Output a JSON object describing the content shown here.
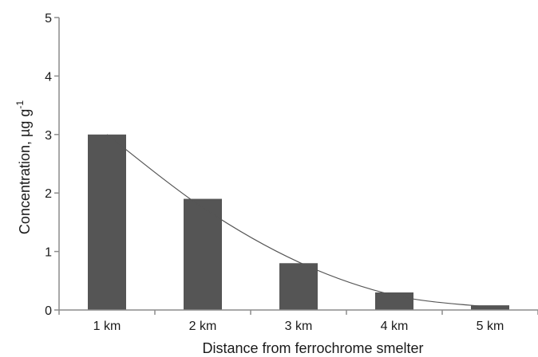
{
  "chart_data": {
    "type": "bar",
    "categories": [
      "1 km",
      "2 km",
      "3 km",
      "4 km",
      "5 km"
    ],
    "values": [
      3.0,
      1.9,
      0.8,
      0.3,
      0.08
    ],
    "trendline": [
      3.0,
      1.75,
      0.82,
      0.25,
      0.05
    ],
    "xlabel": "Distance from ferrochrome smelter",
    "ylabel": "Concentration, µg g",
    "ylabel_superscript": "-1",
    "ylim": [
      0,
      5
    ],
    "yticks": [
      "0",
      "1",
      "2",
      "3",
      "4",
      "5"
    ],
    "grid": false,
    "bar_color": "#555555",
    "trendline_color": "#555555"
  }
}
